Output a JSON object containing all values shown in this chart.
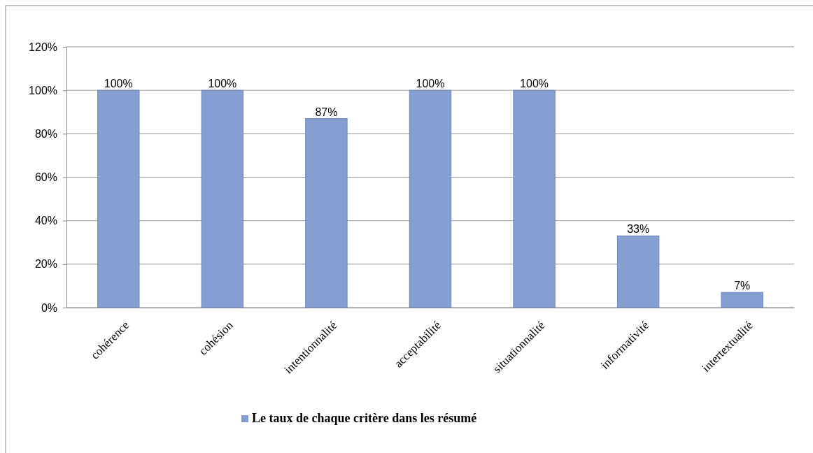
{
  "chart_data": {
    "type": "bar",
    "categories": [
      "cohérence",
      "cohésion",
      "intentionnalité",
      "acceptabilité",
      "situationnalité",
      "informativité",
      "intertextualité"
    ],
    "series": [
      {
        "name": "Le taux de chaque critère dans les résumé",
        "color": "#859fd3",
        "values": [
          100,
          100,
          87,
          100,
          100,
          33,
          7
        ],
        "value_labels": [
          "100%",
          "100%",
          "87%",
          "100%",
          "100%",
          "33%",
          "7%"
        ]
      }
    ],
    "ylim": [
      0,
      120
    ],
    "yticks": [
      {
        "value": 0,
        "label": "0%"
      },
      {
        "value": 20,
        "label": "20%"
      },
      {
        "value": 40,
        "label": "40%"
      },
      {
        "value": 60,
        "label": "60%"
      },
      {
        "value": 80,
        "label": "80%"
      },
      {
        "value": 100,
        "label": "100%"
      },
      {
        "value": 120,
        "label": "120%"
      }
    ],
    "grid": "y",
    "legend": "bottom"
  }
}
